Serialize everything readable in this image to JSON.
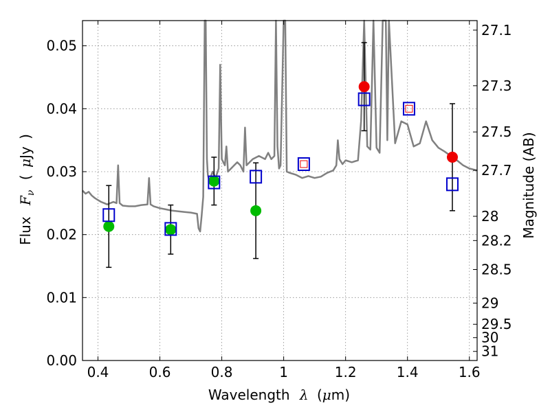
{
  "chart_data": {
    "type": "scatter",
    "xlabel": {
      "prefix": "Wavelength",
      "symbol": "λ",
      "unit_open": "(",
      "unit_mu": "μ",
      "unit_rest": "m)"
    },
    "ylabel": {
      "prefix": "Flux",
      "symbol": "F",
      "subscript": "ν",
      "unit_open": "(",
      "unit_mu": "μ",
      "unit_rest": "Jy",
      "unit_close": ")"
    },
    "y2label": "Magnitude (AB)",
    "xlim": [
      0.35,
      1.625
    ],
    "ylim": [
      0.0,
      0.054
    ],
    "grid": true,
    "x_ticks": [
      {
        "v": 0.4,
        "label": "0.4"
      },
      {
        "v": 0.6,
        "label": "0.6"
      },
      {
        "v": 0.8,
        "label": "0.8"
      },
      {
        "v": 1.0,
        "label": "1"
      },
      {
        "v": 1.2,
        "label": "1.2"
      },
      {
        "v": 1.4,
        "label": "1.4"
      },
      {
        "v": 1.6,
        "label": "1.6"
      }
    ],
    "y_ticks": [
      {
        "v": 0.0,
        "label": "0.00"
      },
      {
        "v": 0.01,
        "label": "0.01"
      },
      {
        "v": 0.02,
        "label": "0.02"
      },
      {
        "v": 0.03,
        "label": "0.03"
      },
      {
        "v": 0.04,
        "label": "0.04"
      },
      {
        "v": 0.05,
        "label": "0.05"
      }
    ],
    "y2_ticks": [
      {
        "mag": 27.1,
        "label": "27.1"
      },
      {
        "mag": 27.3,
        "label": "27.3"
      },
      {
        "mag": 27.5,
        "label": "27.5"
      },
      {
        "mag": 27.7,
        "label": "27.7"
      },
      {
        "mag": 28.0,
        "label": "28"
      },
      {
        "mag": 28.2,
        "label": "28.2"
      },
      {
        "mag": 28.5,
        "label": "28.5"
      },
      {
        "mag": 29.0,
        "label": "29"
      },
      {
        "mag": 29.5,
        "label": "29.5"
      },
      {
        "mag": 30.0,
        "label": "30"
      },
      {
        "mag": 31.0,
        "label": "31"
      }
    ],
    "colors": {
      "spectrum": "#808080",
      "model": "#0000cc",
      "observed_optical": "#00bb00",
      "observed_nir": "#ee0000",
      "errorbar": "#000000",
      "grid": "#888888"
    },
    "spectrum": {
      "x": [
        0.35,
        0.36,
        0.37,
        0.38,
        0.39,
        0.4,
        0.41,
        0.42,
        0.43,
        0.44,
        0.45,
        0.46,
        0.465,
        0.47,
        0.48,
        0.5,
        0.52,
        0.54,
        0.56,
        0.565,
        0.57,
        0.58,
        0.6,
        0.62,
        0.64,
        0.66,
        0.68,
        0.7,
        0.72,
        0.725,
        0.73,
        0.735,
        0.74,
        0.745,
        0.748,
        0.752,
        0.755,
        0.76,
        0.77,
        0.78,
        0.79,
        0.795,
        0.8,
        0.81,
        0.815,
        0.82,
        0.83,
        0.84,
        0.85,
        0.86,
        0.87,
        0.875,
        0.88,
        0.89,
        0.9,
        0.92,
        0.94,
        0.95,
        0.96,
        0.97,
        0.975,
        0.98,
        0.985,
        0.99,
        1.0,
        1.005,
        1.01,
        1.02,
        1.04,
        1.06,
        1.08,
        1.1,
        1.12,
        1.14,
        1.16,
        1.17,
        1.175,
        1.18,
        1.19,
        1.2,
        1.22,
        1.24,
        1.25,
        1.26,
        1.27,
        1.28,
        1.29,
        1.3,
        1.31,
        1.32,
        1.33,
        1.335,
        1.34,
        1.36,
        1.38,
        1.4,
        1.42,
        1.44,
        1.46,
        1.48,
        1.5,
        1.52,
        1.54,
        1.56,
        1.58,
        1.6,
        1.625
      ],
      "y": [
        0.027,
        0.0265,
        0.0268,
        0.0262,
        0.0258,
        0.0255,
        0.0252,
        0.025,
        0.0248,
        0.025,
        0.0252,
        0.025,
        0.031,
        0.025,
        0.0246,
        0.0245,
        0.0245,
        0.0247,
        0.0248,
        0.029,
        0.0248,
        0.0245,
        0.0242,
        0.024,
        0.0238,
        0.0237,
        0.0236,
        0.0235,
        0.0233,
        0.021,
        0.0205,
        0.023,
        0.026,
        0.054,
        0.054,
        0.032,
        0.0295,
        0.0285,
        0.03,
        0.029,
        0.0305,
        0.047,
        0.032,
        0.031,
        0.034,
        0.03,
        0.0305,
        0.031,
        0.0315,
        0.031,
        0.03,
        0.037,
        0.031,
        0.0315,
        0.032,
        0.0325,
        0.032,
        0.033,
        0.032,
        0.0325,
        0.054,
        0.034,
        0.0305,
        0.031,
        0.054,
        0.054,
        0.03,
        0.0298,
        0.0295,
        0.029,
        0.0293,
        0.029,
        0.0292,
        0.0298,
        0.0302,
        0.031,
        0.035,
        0.032,
        0.0312,
        0.0318,
        0.0315,
        0.0318,
        0.038,
        0.054,
        0.034,
        0.0335,
        0.054,
        0.0338,
        0.033,
        0.054,
        0.054,
        0.035,
        0.054,
        0.0345,
        0.038,
        0.0375,
        0.034,
        0.0345,
        0.038,
        0.035,
        0.0338,
        0.0332,
        0.0325,
        0.0318,
        0.031,
        0.0305,
        0.0302
      ]
    },
    "series": [
      {
        "marker": "open-square",
        "x": [
          0.435,
          0.635,
          0.775,
          0.91,
          1.065,
          1.26,
          1.405,
          1.545
        ],
        "y": [
          0.0231,
          0.0209,
          0.0283,
          0.0292,
          0.0312,
          0.0415,
          0.04,
          0.028
        ]
      },
      {
        "marker": "filled-circle-green",
        "x": [
          0.435,
          0.635,
          0.775,
          0.91
        ],
        "y": [
          0.0213,
          0.0208,
          0.0285,
          0.0238
        ],
        "yerr": [
          0.0065,
          0.0039,
          0.0038,
          0.0076
        ]
      },
      {
        "marker": "filled-circle-red",
        "x": [
          1.26,
          1.545
        ],
        "y": [
          0.0435,
          0.0323
        ],
        "yerr": [
          0.007,
          0.0085
        ]
      },
      {
        "marker": "small-red-square",
        "x": [
          1.065,
          1.405
        ],
        "y": [
          0.0312,
          0.04
        ]
      }
    ]
  }
}
